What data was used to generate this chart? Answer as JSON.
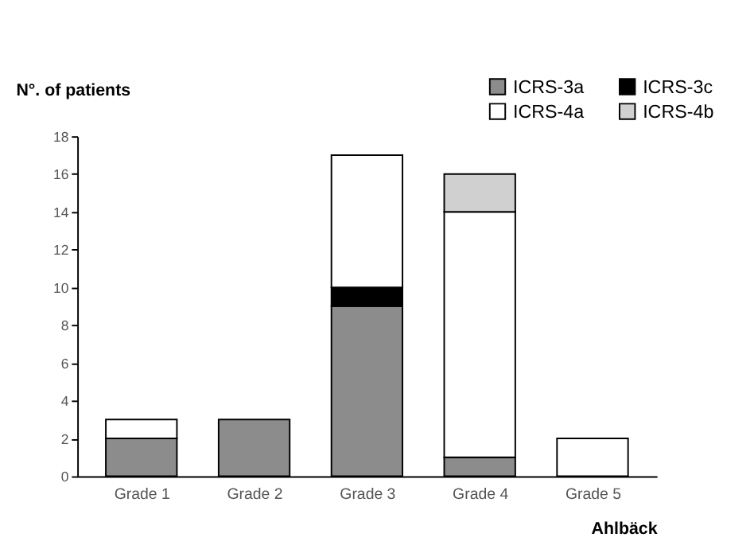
{
  "chart_data": {
    "type": "bar",
    "stacked": true,
    "xlabel": "Ahlbäck",
    "ylabel": "N°. of patients",
    "categories": [
      "Grade 1",
      "Grade 2",
      "Grade 3",
      "Grade 4",
      "Grade 5"
    ],
    "series": [
      {
        "name": "ICRS-3a",
        "color": "#8c8c8c",
        "values": [
          2,
          3,
          9,
          1,
          null
        ]
      },
      {
        "name": "ICRS-3c",
        "color": "#000000",
        "values": [
          null,
          null,
          1,
          null,
          null
        ]
      },
      {
        "name": "ICRS-4a",
        "color": "#ffffff",
        "values": [
          1,
          null,
          7,
          13,
          2
        ]
      },
      {
        "name": "ICRS-4b",
        "color": "#d0d0d0",
        "values": [
          null,
          null,
          null,
          2,
          null
        ]
      }
    ],
    "ylim": [
      0,
      18
    ],
    "yticks": [
      0,
      2,
      4,
      6,
      8,
      10,
      12,
      14,
      16,
      18
    ],
    "grid": false,
    "legend": "top right"
  }
}
